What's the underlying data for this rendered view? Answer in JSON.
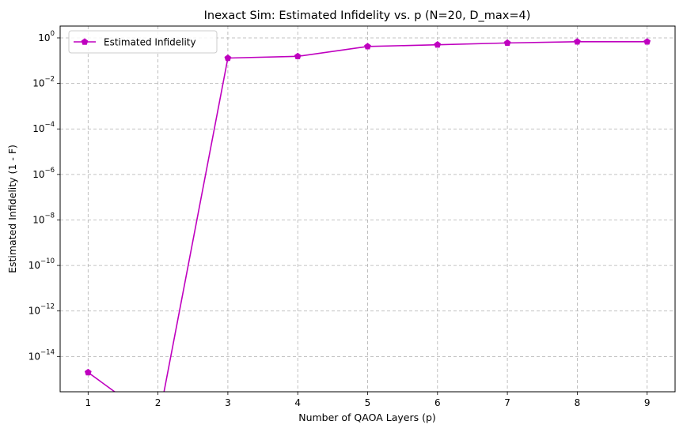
{
  "chart_data": {
    "type": "line",
    "title": "Inexact Sim: Estimated Infidelity vs. p (N=20, D_max=4)",
    "xlabel": "Number of QAOA Layers (p)",
    "ylabel": "Estimated Infidelity (1 - F)",
    "yscale": "log",
    "grid": true,
    "legend_position": "upper-left",
    "x_ticks": [
      1,
      2,
      3,
      4,
      5,
      6,
      7,
      8,
      9
    ],
    "y_tick_exponents": [
      0,
      -2,
      -4,
      -6,
      -8,
      -10,
      -12,
      -14
    ],
    "xlim": [
      0.6,
      9.4
    ],
    "ylim_exp": [
      -15.55,
      0.52
    ],
    "series": [
      {
        "name": "Estimated Infidelity",
        "color": "#bf00bf",
        "marker": "pentagon",
        "x": [
          1,
          2,
          3,
          4,
          5,
          6,
          7,
          8,
          9
        ],
        "y": [
          2e-15,
          0,
          0.13,
          0.155,
          0.42,
          0.5,
          0.6,
          0.68,
          0.68
        ]
      }
    ]
  }
}
